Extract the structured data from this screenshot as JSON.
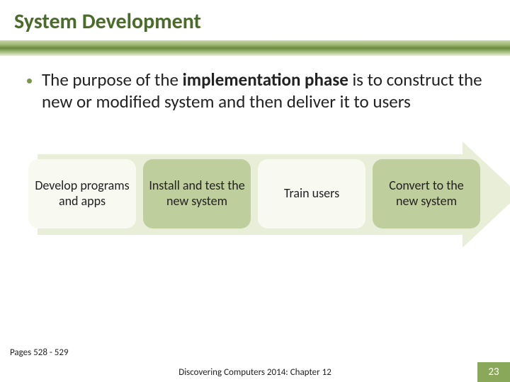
{
  "title": "System Development",
  "bullet": {
    "pre": "The purpose of the ",
    "bold": "implementation phase",
    "post": " is to construct the new or modified system and then deliver it to users"
  },
  "steps": [
    {
      "label": "Develop programs and apps",
      "variant": "light"
    },
    {
      "label": "Install and test the new system",
      "variant": "dark"
    },
    {
      "label": "Train users",
      "variant": "light"
    },
    {
      "label": "Convert to the new system",
      "variant": "dark"
    }
  ],
  "pages_ref": "Pages 528 - 529",
  "footer_text": "Discovering Computers 2014: Chapter 12",
  "page_number": "23",
  "colors": {
    "title": "#4a6b2a",
    "step_light_bg": "#f8faf2",
    "step_dark_bg": "#bfce9d",
    "arrow_bg": "#e8eed8",
    "page_badge_bg": "#8aa85a"
  }
}
